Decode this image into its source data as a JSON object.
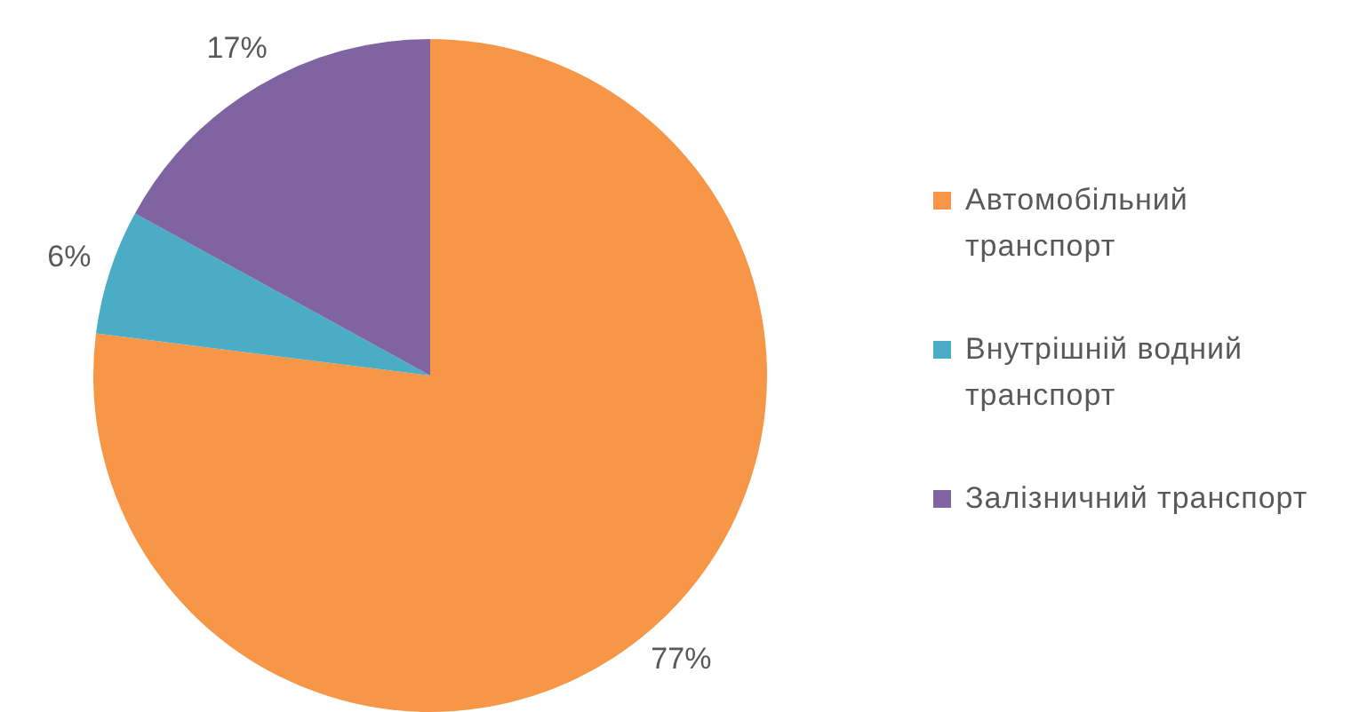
{
  "chart_data": {
    "type": "pie",
    "categories": [
      "Автомобільний транспорт",
      "Внутрішній водний транспорт",
      "Залізничний транспорт"
    ],
    "values": [
      77,
      6,
      17
    ],
    "colors": [
      "#f79646",
      "#4bacc6",
      "#8064a2"
    ],
    "value_labels": [
      "77%",
      "6%",
      "17%"
    ],
    "legend": "right"
  }
}
